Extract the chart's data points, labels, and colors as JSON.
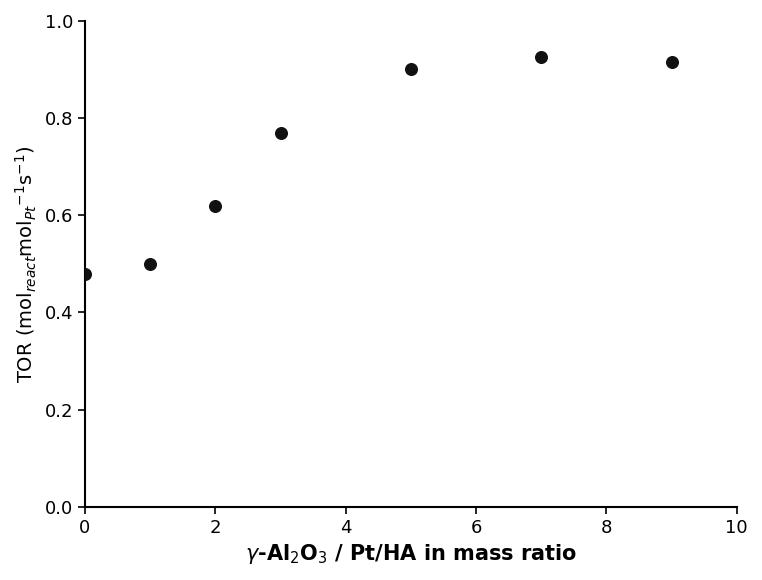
{
  "x": [
    0,
    1,
    2,
    3,
    5,
    7,
    9
  ],
  "y": [
    0.48,
    0.5,
    0.62,
    0.77,
    0.9,
    0.925,
    0.915
  ],
  "marker": "o",
  "marker_color": "#111111",
  "marker_size": 70,
  "xlabel_italic": "$\\it{\\gamma}$",
  "xlabel_rest": "-Al$_2$O$_3$ / Pt/HA in mass ratio",
  "ylabel": "TOR (mol$_{react}$mol$_{Pt}$$^{-1}$s$^{-1}$)",
  "xlim": [
    0,
    10
  ],
  "ylim": [
    0.0,
    1.0
  ],
  "xticks": [
    0,
    2,
    4,
    6,
    8,
    10
  ],
  "yticks": [
    0.0,
    0.2,
    0.4,
    0.6,
    0.8,
    1.0
  ],
  "background_color": "#ffffff",
  "xlabel_fontsize": 15,
  "ylabel_fontsize": 14,
  "tick_fontsize": 13,
  "spine_linewidth": 1.5
}
